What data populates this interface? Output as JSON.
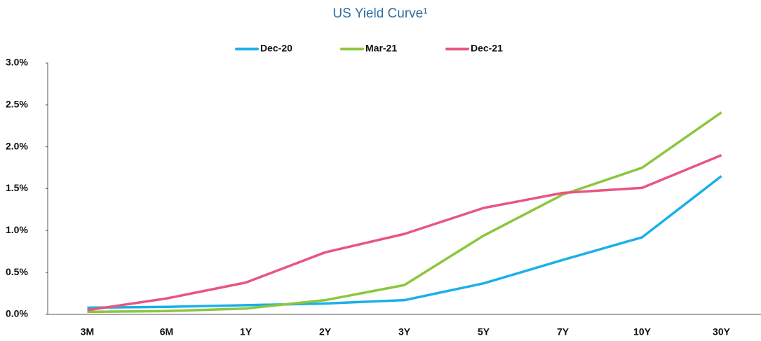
{
  "chart_data": {
    "type": "line",
    "title": "US Yield Curve¹",
    "categories": [
      "3M",
      "6M",
      "1Y",
      "2Y",
      "3Y",
      "5Y",
      "7Y",
      "10Y",
      "30Y"
    ],
    "series": [
      {
        "name": "Dec-20",
        "color": "#1ab0e8",
        "values": [
          0.08,
          0.09,
          0.11,
          0.13,
          0.17,
          0.37,
          0.65,
          0.92,
          1.65
        ]
      },
      {
        "name": "Mar-21",
        "color": "#8cc63f",
        "values": [
          0.03,
          0.04,
          0.07,
          0.17,
          0.35,
          0.94,
          1.43,
          1.75,
          2.41
        ]
      },
      {
        "name": "Dec-21",
        "color": "#e8567f",
        "values": [
          0.05,
          0.19,
          0.38,
          0.74,
          0.96,
          1.27,
          1.45,
          1.51,
          1.9
        ]
      }
    ],
    "ylim": [
      0,
      3
    ],
    "yticks": [
      {
        "value": 0,
        "label": "0.0%"
      },
      {
        "value": 0.5,
        "label": "0.5%"
      },
      {
        "value": 1,
        "label": "1.0%"
      },
      {
        "value": 1.5,
        "label": "1.5%"
      },
      {
        "value": 2,
        "label": "2.0%"
      },
      {
        "value": 2.5,
        "label": "2.5%"
      },
      {
        "value": 3,
        "label": "3.0%"
      }
    ],
    "grid": false,
    "legend": "top"
  }
}
